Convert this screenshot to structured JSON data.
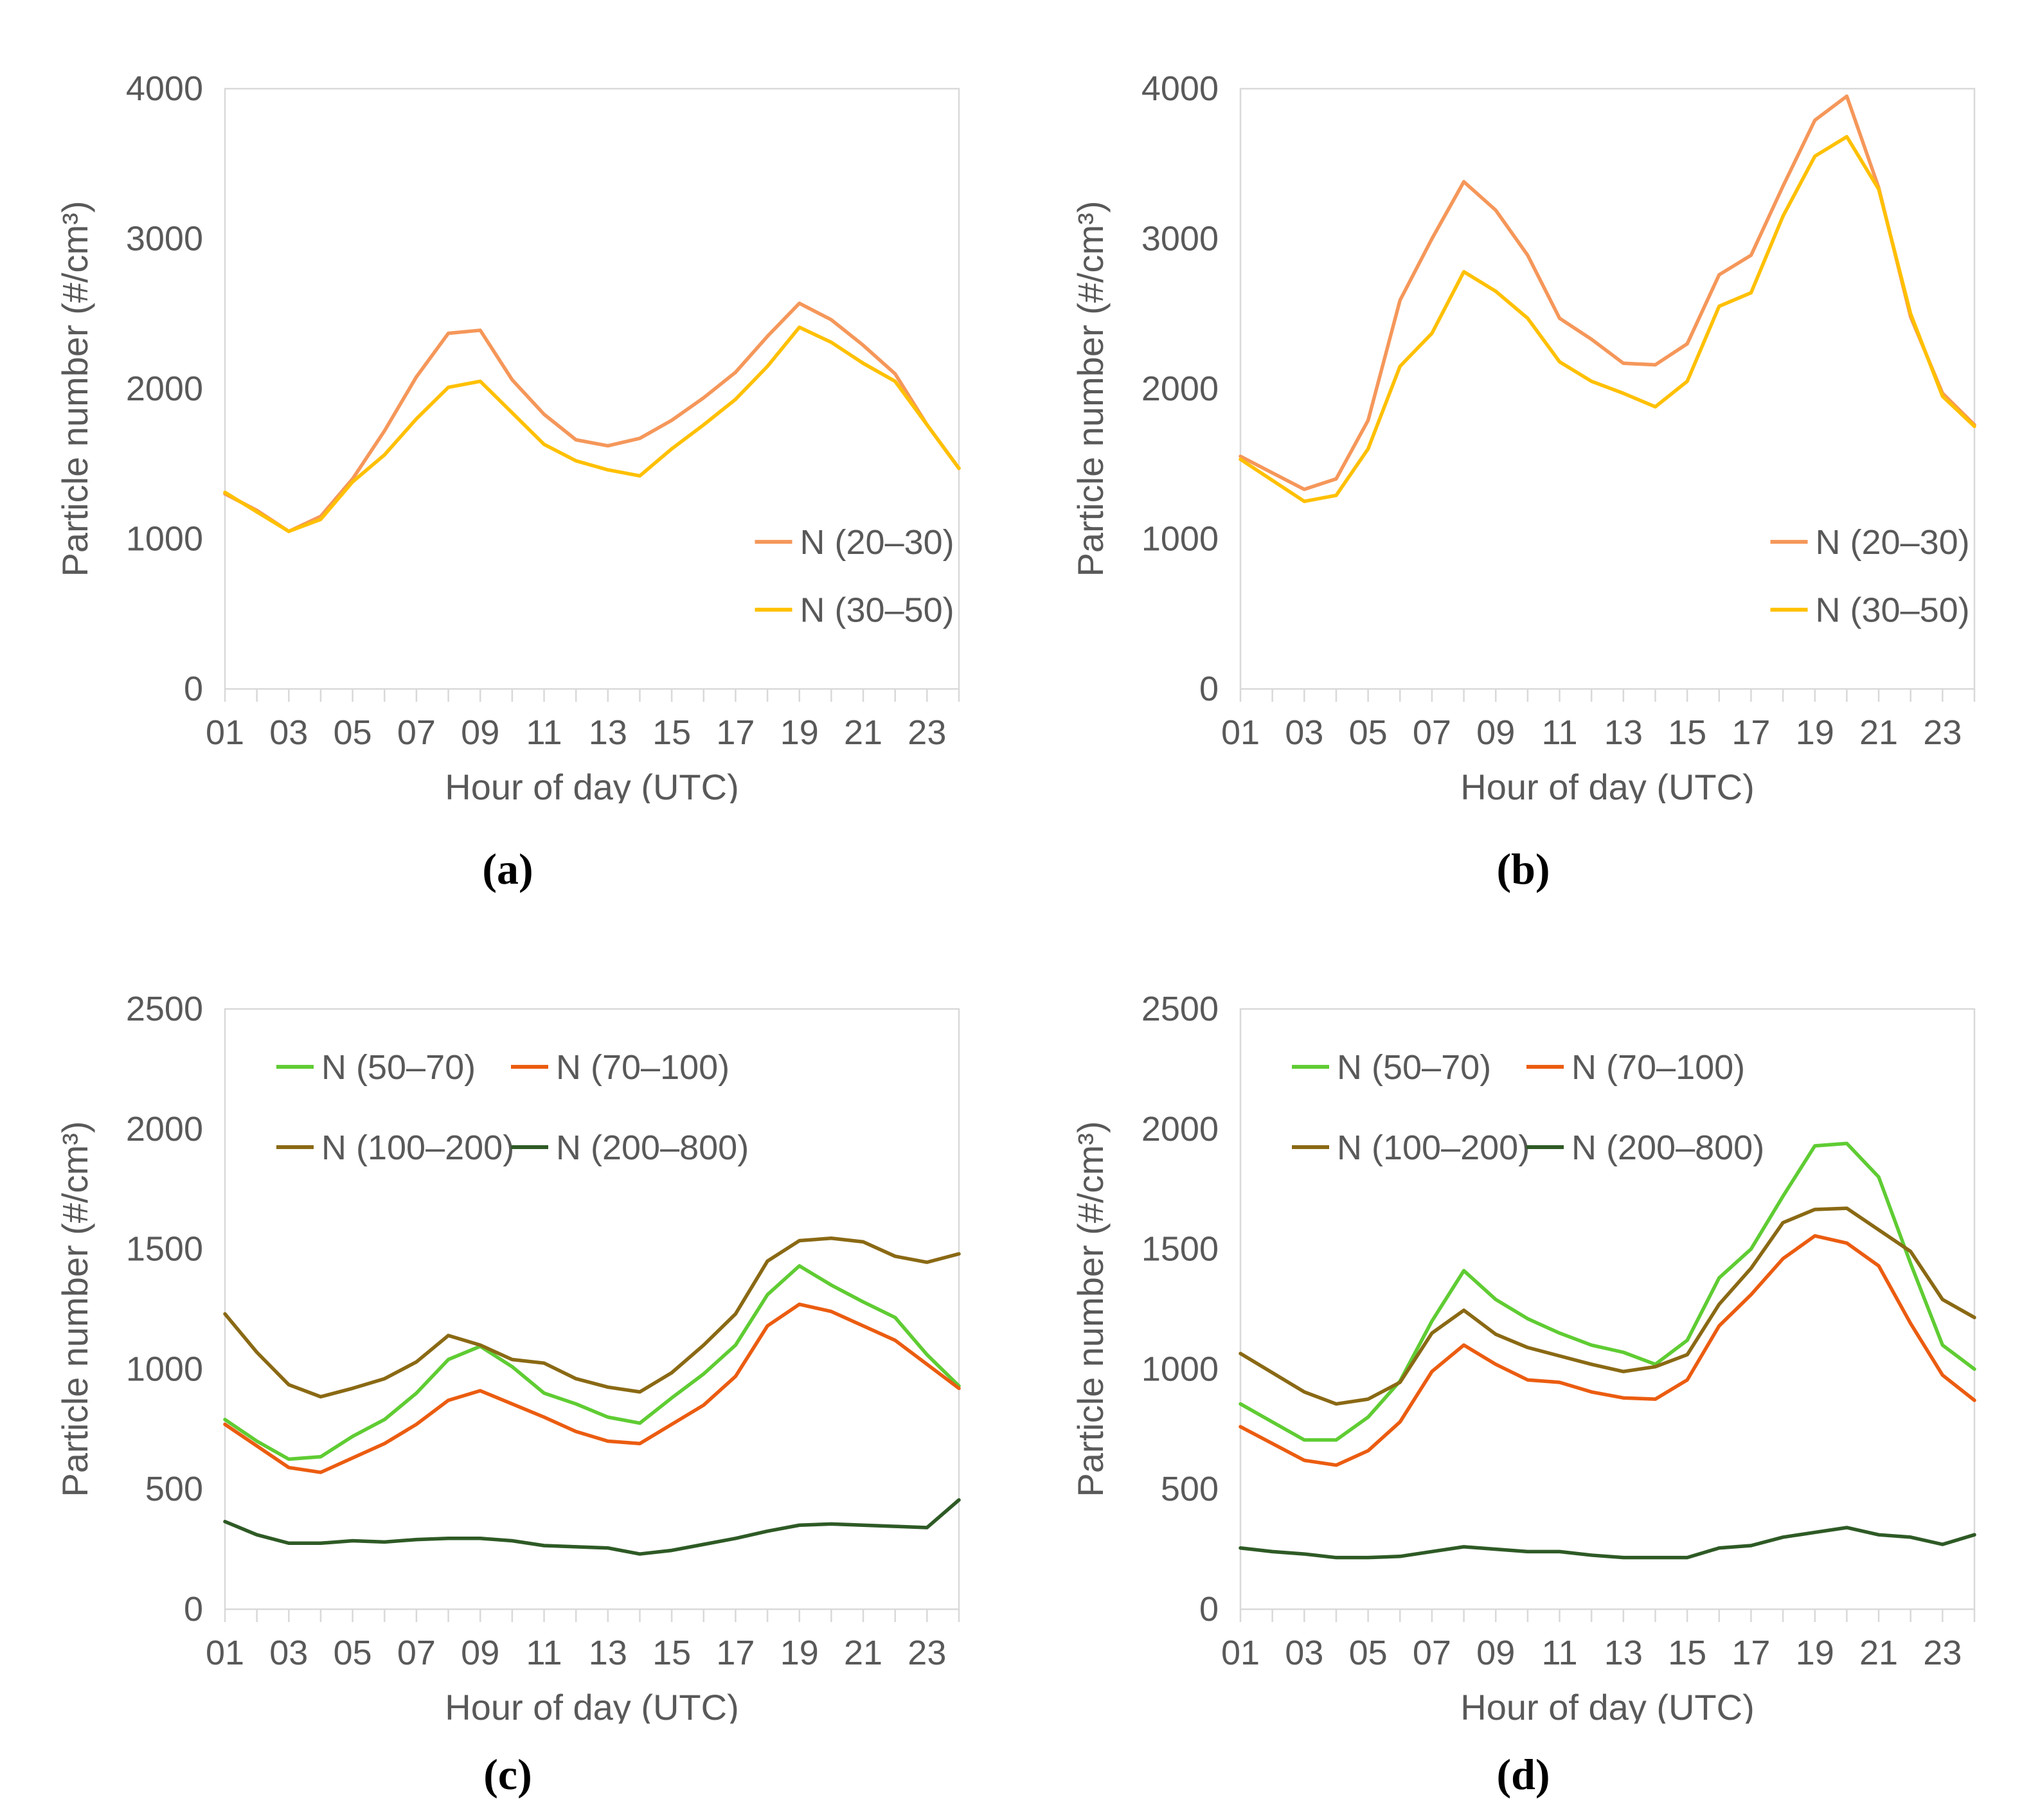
{
  "colors": {
    "background": "#FFFFFF",
    "axis": "#D9D9D9",
    "text": "#595959",
    "panel_label_color": "#000000"
  },
  "chart_data": [
    {
      "id": "a",
      "type": "line",
      "panel_label": "(a)",
      "xlabel": "Hour of day (UTC)",
      "ylabel": "Particle number (#/cm³)",
      "ylim": [
        0,
        4000
      ],
      "yticks": [
        0,
        1000,
        2000,
        3000,
        4000
      ],
      "categories": [
        "01",
        "02",
        "03",
        "04",
        "05",
        "06",
        "07",
        "08",
        "09",
        "10",
        "11",
        "12",
        "13",
        "14",
        "15",
        "16",
        "17",
        "18",
        "19",
        "20",
        "21",
        "22",
        "23",
        "24"
      ],
      "xtick_labels": [
        "01",
        "03",
        "05",
        "07",
        "09",
        "11",
        "13",
        "15",
        "17",
        "19",
        "21",
        "23"
      ],
      "grid": false,
      "legend": {
        "layout": "stack-right",
        "position": "inside right-bottom"
      },
      "series": [
        {
          "name": "N (20–30)",
          "color": "#F5975A",
          "values": [
            1300,
            1190,
            1050,
            1150,
            1400,
            1720,
            2080,
            2370,
            2390,
            2060,
            1830,
            1660,
            1620,
            1670,
            1790,
            1940,
            2110,
            2350,
            2570,
            2460,
            2290,
            2100,
            1760,
            1470
          ]
        },
        {
          "name": "N (30–50)",
          "color": "#FFC000",
          "values": [
            1310,
            1180,
            1050,
            1130,
            1380,
            1560,
            1800,
            2010,
            2050,
            1840,
            1630,
            1520,
            1460,
            1420,
            1600,
            1760,
            1930,
            2150,
            2410,
            2310,
            2170,
            2050,
            1760,
            1470
          ]
        }
      ]
    },
    {
      "id": "b",
      "type": "line",
      "panel_label": "(b)",
      "xlabel": "Hour of day (UTC)",
      "ylabel": "Particle number (#/cm³)",
      "ylim": [
        0,
        4000
      ],
      "yticks": [
        0,
        1000,
        2000,
        3000,
        4000
      ],
      "categories": [
        "01",
        "02",
        "03",
        "04",
        "05",
        "06",
        "07",
        "08",
        "09",
        "10",
        "11",
        "12",
        "13",
        "14",
        "15",
        "16",
        "17",
        "18",
        "19",
        "20",
        "21",
        "22",
        "23",
        "24"
      ],
      "xtick_labels": [
        "01",
        "03",
        "05",
        "07",
        "09",
        "11",
        "13",
        "15",
        "17",
        "19",
        "21",
        "23"
      ],
      "grid": false,
      "legend": {
        "layout": "stack-right",
        "position": "inside right-bottom"
      },
      "series": [
        {
          "name": "N (20–30)",
          "color": "#F5975A",
          "values": [
            1550,
            1440,
            1330,
            1400,
            1790,
            2590,
            3000,
            3380,
            3190,
            2890,
            2470,
            2330,
            2170,
            2160,
            2300,
            2760,
            2890,
            3350,
            3790,
            3950,
            3340,
            2480,
            1970,
            1760
          ]
        },
        {
          "name": "N (30–50)",
          "color": "#FFC000",
          "values": [
            1530,
            1390,
            1250,
            1290,
            1600,
            2150,
            2370,
            2780,
            2650,
            2470,
            2180,
            2050,
            1970,
            1880,
            2050,
            2550,
            2640,
            3150,
            3550,
            3680,
            3330,
            2500,
            1950,
            1750
          ]
        }
      ]
    },
    {
      "id": "c",
      "type": "line",
      "panel_label": "(c)",
      "xlabel": "Hour of day (UTC)",
      "ylabel": "Particle number (#/cm³)",
      "ylim": [
        0,
        2500
      ],
      "yticks": [
        0,
        500,
        1000,
        1500,
        2000,
        2500
      ],
      "categories": [
        "01",
        "02",
        "03",
        "04",
        "05",
        "06",
        "07",
        "08",
        "09",
        "10",
        "11",
        "12",
        "13",
        "14",
        "15",
        "16",
        "17",
        "18",
        "19",
        "20",
        "21",
        "22",
        "23",
        "24"
      ],
      "xtick_labels": [
        "01",
        "03",
        "05",
        "07",
        "09",
        "11",
        "13",
        "15",
        "17",
        "19",
        "21",
        "23"
      ],
      "grid": false,
      "legend": {
        "layout": "grid-top-left",
        "position": "inside top-left"
      },
      "series": [
        {
          "name": "N (50–70)",
          "color": "#5FCC33",
          "values": [
            790,
            700,
            625,
            635,
            720,
            790,
            900,
            1040,
            1095,
            1010,
            900,
            855,
            800,
            775,
            880,
            980,
            1100,
            1310,
            1430,
            1350,
            1280,
            1215,
            1060,
            930
          ]
        },
        {
          "name": "N (70–100)",
          "color": "#EB5C10",
          "values": [
            770,
            680,
            590,
            570,
            630,
            690,
            770,
            870,
            910,
            855,
            800,
            740,
            700,
            690,
            770,
            850,
            970,
            1180,
            1270,
            1240,
            1180,
            1120,
            1020,
            920
          ]
        },
        {
          "name": "N (100–200)",
          "color": "#8A6914",
          "values": [
            1230,
            1070,
            935,
            885,
            920,
            960,
            1030,
            1140,
            1100,
            1040,
            1025,
            960,
            925,
            905,
            985,
            1100,
            1230,
            1450,
            1535,
            1545,
            1530,
            1470,
            1445,
            1480
          ]
        },
        {
          "name": "N (200–800)",
          "color": "#2E5A25",
          "values": [
            365,
            310,
            275,
            275,
            285,
            280,
            290,
            295,
            295,
            285,
            265,
            260,
            255,
            230,
            245,
            270,
            295,
            325,
            350,
            355,
            350,
            345,
            340,
            455
          ]
        }
      ]
    },
    {
      "id": "d",
      "type": "line",
      "panel_label": "(d)",
      "xlabel": "Hour of day (UTC)",
      "ylabel": "Particle number (#/cm³)",
      "ylim": [
        0,
        2500
      ],
      "yticks": [
        0,
        500,
        1000,
        1500,
        2000,
        2500
      ],
      "categories": [
        "01",
        "02",
        "03",
        "04",
        "05",
        "06",
        "07",
        "08",
        "09",
        "10",
        "11",
        "12",
        "13",
        "14",
        "15",
        "16",
        "17",
        "18",
        "19",
        "20",
        "21",
        "22",
        "23",
        "24"
      ],
      "xtick_labels": [
        "01",
        "03",
        "05",
        "07",
        "09",
        "11",
        "13",
        "15",
        "17",
        "19",
        "21",
        "23"
      ],
      "grid": false,
      "legend": {
        "layout": "grid-top-left",
        "position": "inside top-left"
      },
      "series": [
        {
          "name": "N (50–70)",
          "color": "#5FCC33",
          "values": [
            855,
            780,
            705,
            705,
            800,
            950,
            1200,
            1410,
            1290,
            1210,
            1150,
            1100,
            1070,
            1020,
            1120,
            1380,
            1500,
            1720,
            1930,
            1940,
            1800,
            1440,
            1100,
            1000
          ]
        },
        {
          "name": "N (70–100)",
          "color": "#EB5C10",
          "values": [
            760,
            690,
            620,
            600,
            660,
            780,
            990,
            1100,
            1020,
            955,
            945,
            905,
            880,
            875,
            955,
            1180,
            1310,
            1460,
            1555,
            1525,
            1430,
            1190,
            975,
            870
          ]
        },
        {
          "name": "N (100–200)",
          "color": "#8A6914",
          "values": [
            1065,
            985,
            905,
            855,
            875,
            945,
            1150,
            1245,
            1145,
            1090,
            1055,
            1020,
            990,
            1010,
            1060,
            1270,
            1420,
            1610,
            1665,
            1670,
            1580,
            1490,
            1290,
            1215
          ]
        },
        {
          "name": "N (200–800)",
          "color": "#2E5A25",
          "values": [
            255,
            240,
            230,
            215,
            215,
            220,
            240,
            260,
            250,
            240,
            240,
            225,
            215,
            215,
            215,
            255,
            265,
            300,
            320,
            340,
            310,
            300,
            270,
            310
          ]
        }
      ]
    }
  ]
}
